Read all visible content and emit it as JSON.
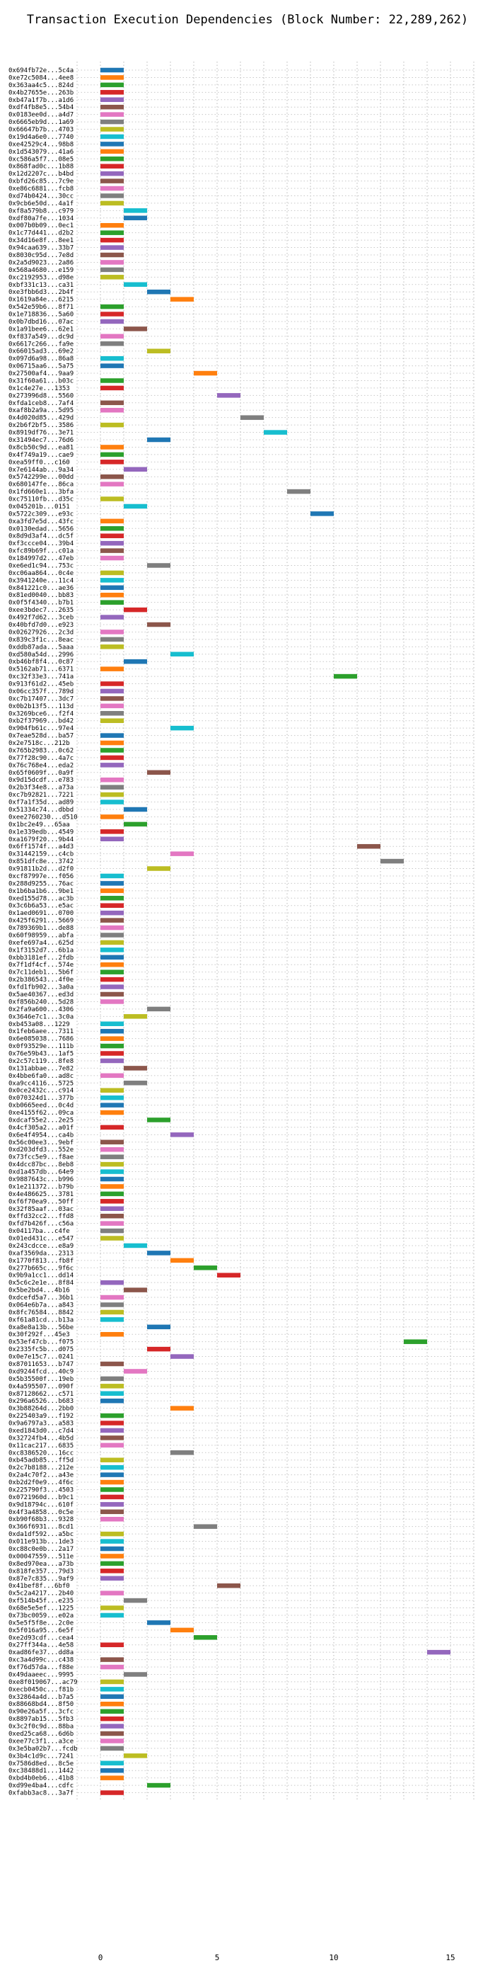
{
  "chart_data": {
    "type": "bar",
    "orientation": "horizontal",
    "title": "Transaction Execution Dependencies (Block Number: 22,289,262)",
    "xlabel": "",
    "ylabel": "",
    "xlim": [
      -1,
      16
    ],
    "xticks": [
      0,
      5,
      10,
      15
    ],
    "grid": true,
    "grid_style": "dotted",
    "colors": [
      "#1f77b4",
      "#ff7f0e",
      "#2ca02c",
      "#d62728",
      "#9467bd",
      "#8c564b",
      "#e377c2",
      "#7f7f7f",
      "#bcbd22",
      "#17becf"
    ],
    "transactions": [
      {
        "tx": "0x694fb72e...5c4a",
        "start": 0
      },
      {
        "tx": "0xe72c5084...4ee8",
        "start": 0
      },
      {
        "tx": "0x363aa4c5...824d",
        "start": 0
      },
      {
        "tx": "0x4b27655e...263b",
        "start": 0
      },
      {
        "tx": "0xb47a1f7b...a1d6",
        "start": 0
      },
      {
        "tx": "0xdf4fb8e5...54b4",
        "start": 0
      },
      {
        "tx": "0x0183ee0d...a4d7",
        "start": 0
      },
      {
        "tx": "0x6665eb9d...1a69",
        "start": 0
      },
      {
        "tx": "0x66647b7b...4703",
        "start": 0
      },
      {
        "tx": "0x19d4a6e0...7740",
        "start": 0
      },
      {
        "tx": "0xe42529c4...98b8",
        "start": 0
      },
      {
        "tx": "0x1d543079...41a6",
        "start": 0
      },
      {
        "tx": "0xc586a5f7...08e5",
        "start": 0
      },
      {
        "tx": "0x868fad0c...1b88",
        "start": 0
      },
      {
        "tx": "0x12d2207c...b4bd",
        "start": 0
      },
      {
        "tx": "0xbfd26c85...7c9e",
        "start": 0
      },
      {
        "tx": "0xe86c6881...fcb8",
        "start": 0
      },
      {
        "tx": "0xd74b0424...30cc",
        "start": 0
      },
      {
        "tx": "0x9cb6e50d...4a1f",
        "start": 0
      },
      {
        "tx": "0xf8a579b8...c979",
        "start": 1
      },
      {
        "tx": "0xdf80a7fe...1034",
        "start": 1
      },
      {
        "tx": "0x007b0b09...0ec1",
        "start": 0
      },
      {
        "tx": "0x1c77d441...d2b2",
        "start": 0
      },
      {
        "tx": "0x34d16e8f...8ee1",
        "start": 0
      },
      {
        "tx": "0x94caa639...33b7",
        "start": 0
      },
      {
        "tx": "0x8030c95d...7e8d",
        "start": 0
      },
      {
        "tx": "0x2a5d9023...2a86",
        "start": 0
      },
      {
        "tx": "0x568a4680...e159",
        "start": 0
      },
      {
        "tx": "0xc2192953...d98e",
        "start": 0
      },
      {
        "tx": "0xbf331c13...ca31",
        "start": 1
      },
      {
        "tx": "0xe3fbb6d3...2b4f",
        "start": 2
      },
      {
        "tx": "0x1619a84e...6215",
        "start": 3
      },
      {
        "tx": "0x542e59b6...8f71",
        "start": 0
      },
      {
        "tx": "0x1e718836...5a60",
        "start": 0
      },
      {
        "tx": "0x0b7dbd16...07ac",
        "start": 0
      },
      {
        "tx": "0x1a91bee6...62e1",
        "start": 1
      },
      {
        "tx": "0xf837a549...dc9d",
        "start": 0
      },
      {
        "tx": "0x6617c266...fa9e",
        "start": 0
      },
      {
        "tx": "0x66015ad3...69e2",
        "start": 2
      },
      {
        "tx": "0x097d6a98...86a8",
        "start": 0
      },
      {
        "tx": "0x06715aa6...5a75",
        "start": 0
      },
      {
        "tx": "0x27500af4...9aa9",
        "start": 4
      },
      {
        "tx": "0x31f60a61...b03c",
        "start": 0
      },
      {
        "tx": "0x1c4e27e...1353",
        "start": 0
      },
      {
        "tx": "0x273996d8...5560",
        "start": 5
      },
      {
        "tx": "0xfda1ceb8...7af4",
        "start": 0
      },
      {
        "tx": "0xaf8b2a9a...5d95",
        "start": 0
      },
      {
        "tx": "0x4d020d85...429d",
        "start": 6
      },
      {
        "tx": "0x2b6f2bf5...3586",
        "start": 0
      },
      {
        "tx": "0x8919df76...3e71",
        "start": 7
      },
      {
        "tx": "0x31494ec7...76d6",
        "start": 2
      },
      {
        "tx": "0x8cb50c9d...ea81",
        "start": 0
      },
      {
        "tx": "0x4f749a19...cae9",
        "start": 0
      },
      {
        "tx": "0xea59ff0...c160",
        "start": 0
      },
      {
        "tx": "0x7e6144ab...9a34",
        "start": 1
      },
      {
        "tx": "0x5742299e...00dd",
        "start": 0
      },
      {
        "tx": "0x680147fe...86ca",
        "start": 0
      },
      {
        "tx": "0x1fd660e1...3bfa",
        "start": 8
      },
      {
        "tx": "0xc75110fb...d35c",
        "start": 0
      },
      {
        "tx": "0x045201b...0151",
        "start": 1
      },
      {
        "tx": "0x5722c309...e93c",
        "start": 9
      },
      {
        "tx": "0xa3fd7e5d...43fc",
        "start": 0
      },
      {
        "tx": "0x0130edad...5656",
        "start": 0
      },
      {
        "tx": "0x8d9d3af4...dc5f",
        "start": 0
      },
      {
        "tx": "0xf3ccce04...39b4",
        "start": 0
      },
      {
        "tx": "0xfc89b69f...c01a",
        "start": 0
      },
      {
        "tx": "0x184997d2...47eb",
        "start": 0
      },
      {
        "tx": "0xe6ed1c94...753c",
        "start": 2
      },
      {
        "tx": "0xc06aa864...0c4e",
        "start": 0
      },
      {
        "tx": "0x3941240e...11c4",
        "start": 0
      },
      {
        "tx": "0x841221c0...ae36",
        "start": 0
      },
      {
        "tx": "0x81ed0040...bb83",
        "start": 0
      },
      {
        "tx": "0x0f5f4340...b7b1",
        "start": 0
      },
      {
        "tx": "0xee3bdec7...2635",
        "start": 1
      },
      {
        "tx": "0x492f7d62...3ceb",
        "start": 0
      },
      {
        "tx": "0x40bfd7d0...e923",
        "start": 2
      },
      {
        "tx": "0x02627926...2c3d",
        "start": 0
      },
      {
        "tx": "0x839c3f1c...8eac",
        "start": 0
      },
      {
        "tx": "0xddb87ada...5aaa",
        "start": 0
      },
      {
        "tx": "0xd580a54d...2996",
        "start": 3
      },
      {
        "tx": "0xb46bf8f4...0c87",
        "start": 1
      },
      {
        "tx": "0x5162ab71...6371",
        "start": 0
      },
      {
        "tx": "0xc32f33e3...741a",
        "start": 10
      },
      {
        "tx": "0x913f61d2...45eb",
        "start": 0
      },
      {
        "tx": "0x06cc357f...789d",
        "start": 0
      },
      {
        "tx": "0xc7b17407...3dc7",
        "start": 0
      },
      {
        "tx": "0x0b2b13f5...113d",
        "start": 0
      },
      {
        "tx": "0x3269bce6...f2f4",
        "start": 0
      },
      {
        "tx": "0xb2f37969...bd42",
        "start": 0
      },
      {
        "tx": "0x904fb61c...97e4",
        "start": 3
      },
      {
        "tx": "0x7eae528d...ba57",
        "start": 0
      },
      {
        "tx": "0x2e7518c...212b",
        "start": 0
      },
      {
        "tx": "0x765b2983...0c62",
        "start": 0
      },
      {
        "tx": "0x77f28c90...4a7c",
        "start": 0
      },
      {
        "tx": "0x76c768e4...eda2",
        "start": 0
      },
      {
        "tx": "0x65f0609f...0a9f",
        "start": 2
      },
      {
        "tx": "0x9d15dcdf...e783",
        "start": 0
      },
      {
        "tx": "0x2b3f34e8...a73a",
        "start": 0
      },
      {
        "tx": "0xc7b92821...7221",
        "start": 0
      },
      {
        "tx": "0xf7a1f35d...ad89",
        "start": 0
      },
      {
        "tx": "0x51334c74...dbbd",
        "start": 1
      },
      {
        "tx": "0xee2760230...d510",
        "start": 0
      },
      {
        "tx": "0x1bc2e49...65aa",
        "start": 1
      },
      {
        "tx": "0x1e339edb...4549",
        "start": 0
      },
      {
        "tx": "0xa1679f20...9b44",
        "start": 0
      },
      {
        "tx": "0x6ff1574f...a4d3",
        "start": 11
      },
      {
        "tx": "0x31442159...c4cb",
        "start": 3
      },
      {
        "tx": "0x851dfc8e...3742",
        "start": 12
      },
      {
        "tx": "0x91811b2d...d2f0",
        "start": 2
      },
      {
        "tx": "0xcf87997e...f056",
        "start": 0
      },
      {
        "tx": "0x288d9255...76ac",
        "start": 0
      },
      {
        "tx": "0x1b6ba1b6...9be1",
        "start": 0
      },
      {
        "tx": "0xed155d78...ac3b",
        "start": 0
      },
      {
        "tx": "0x3c6b6a53...e5ac",
        "start": 0
      },
      {
        "tx": "0x1aed0691...0700",
        "start": 0
      },
      {
        "tx": "0x425f6291...5669",
        "start": 0
      },
      {
        "tx": "0x789369b1...de88",
        "start": 0
      },
      {
        "tx": "0x60f98959...abfa",
        "start": 0
      },
      {
        "tx": "0xefe697a4...625d",
        "start": 0
      },
      {
        "tx": "0x1f3152d7...6b1a",
        "start": 0
      },
      {
        "tx": "0xbb3181ef...2fdb",
        "start": 0
      },
      {
        "tx": "0x7f1df4cf...574e",
        "start": 0
      },
      {
        "tx": "0x7c11deb1...5b6f",
        "start": 0
      },
      {
        "tx": "0x2b386543...4f0e",
        "start": 0
      },
      {
        "tx": "0xfd1fb902...3a0a",
        "start": 0
      },
      {
        "tx": "0x5ae40367...ed3d",
        "start": 0
      },
      {
        "tx": "0xf856b240...5d28",
        "start": 0
      },
      {
        "tx": "0x2fa9a600...4306",
        "start": 2
      },
      {
        "tx": "0x3646e7c1...3c0a",
        "start": 1
      },
      {
        "tx": "0xb453a08...1229",
        "start": 0
      },
      {
        "tx": "0x1feb6aee...7311",
        "start": 0
      },
      {
        "tx": "0x6e085038...7686",
        "start": 0
      },
      {
        "tx": "0x0f93529e...111b",
        "start": 0
      },
      {
        "tx": "0x76e59b43...1af5",
        "start": 0
      },
      {
        "tx": "0x2c57c119...8fe8",
        "start": 0
      },
      {
        "tx": "0x131abbae...7e82",
        "start": 1
      },
      {
        "tx": "0x4bbe6fa0...ad8c",
        "start": 0
      },
      {
        "tx": "0xa9cc4116...5725",
        "start": 1
      },
      {
        "tx": "0x0ce2432c...c914",
        "start": 0
      },
      {
        "tx": "0x070324d1...377b",
        "start": 0
      },
      {
        "tx": "0xb0665eed...0c4d",
        "start": 0
      },
      {
        "tx": "0xe4155f62...09ca",
        "start": 0
      },
      {
        "tx": "0xdcaf55e2...2e25",
        "start": 2
      },
      {
        "tx": "0x4cf305a2...a01f",
        "start": 0
      },
      {
        "tx": "0x6e4f4954...ca4b",
        "start": 3
      },
      {
        "tx": "0x56c00ee3...9ebf",
        "start": 0
      },
      {
        "tx": "0xd203dfd3...552e",
        "start": 0
      },
      {
        "tx": "0x73fcc5e9...f8ae",
        "start": 0
      },
      {
        "tx": "0x4dcc87bc...8eb8",
        "start": 0
      },
      {
        "tx": "0xd1a457db...64e9",
        "start": 0
      },
      {
        "tx": "0x9887643c...b996",
        "start": 0
      },
      {
        "tx": "0x1e211372...b79b",
        "start": 0
      },
      {
        "tx": "0x4e486625...3781",
        "start": 0
      },
      {
        "tx": "0xf6f70ea9...50ff",
        "start": 0
      },
      {
        "tx": "0x32f85aaf...03ac",
        "start": 0
      },
      {
        "tx": "0xffd32cc2...ffd8",
        "start": 0
      },
      {
        "tx": "0xfd7b426f...c56a",
        "start": 0
      },
      {
        "tx": "0x04117ba...c4fe",
        "start": 0
      },
      {
        "tx": "0x01ed431c...e547",
        "start": 0
      },
      {
        "tx": "0x243cdcce...e8a9",
        "start": 1
      },
      {
        "tx": "0xaf3569da...2313",
        "start": 2
      },
      {
        "tx": "0x1770f813...fb8f",
        "start": 3
      },
      {
        "tx": "0x277b665c...9f6c",
        "start": 4
      },
      {
        "tx": "0x9b9a1cc1...dd14",
        "start": 5
      },
      {
        "tx": "0x5c6c2e1e...8f84",
        "start": 0
      },
      {
        "tx": "0x5be2bd4...4b16",
        "start": 1
      },
      {
        "tx": "0xdcefd5a7...36b1",
        "start": 0
      },
      {
        "tx": "0x064e6b7a...a843",
        "start": 0
      },
      {
        "tx": "0x8fc76584...8842",
        "start": 0
      },
      {
        "tx": "0xf61a81cd...b13a",
        "start": 0
      },
      {
        "tx": "0xa8e8a13b...56be",
        "start": 2
      },
      {
        "tx": "0x30f292f...45e3",
        "start": 0
      },
      {
        "tx": "0x53ef47cb...f075",
        "start": 13
      },
      {
        "tx": "0x2335fc5b...d075",
        "start": 2
      },
      {
        "tx": "0x0e7e15c7...0241",
        "start": 3
      },
      {
        "tx": "0x87011653...b747",
        "start": 0
      },
      {
        "tx": "0xd9244fcd...40c9",
        "start": 1
      },
      {
        "tx": "0x5b35500f...19eb",
        "start": 0
      },
      {
        "tx": "0x4a595507...090f",
        "start": 0
      },
      {
        "tx": "0x87128662...c571",
        "start": 0
      },
      {
        "tx": "0x296a6526...b683",
        "start": 0
      },
      {
        "tx": "0x3b88264d...2bb0",
        "start": 3
      },
      {
        "tx": "0x225403a9...f192",
        "start": 0
      },
      {
        "tx": "0x9a6797a3...a583",
        "start": 0
      },
      {
        "tx": "0xed1843d0...c7d4",
        "start": 0
      },
      {
        "tx": "0x32724fb4...4b5d",
        "start": 0
      },
      {
        "tx": "0x11cac217...6835",
        "start": 0
      },
      {
        "tx": "0xc8386520...16cc",
        "start": 3
      },
      {
        "tx": "0xb45adb85...ff5d",
        "start": 0
      },
      {
        "tx": "0x2c7b8188...212e",
        "start": 0
      },
      {
        "tx": "0x2a4c70f2...a43e",
        "start": 0
      },
      {
        "tx": "0xb2d2f0e9...4f6c",
        "start": 0
      },
      {
        "tx": "0x225790f3...4503",
        "start": 0
      },
      {
        "tx": "0x0721960d...b9c1",
        "start": 0
      },
      {
        "tx": "0x9d18794c...610f",
        "start": 0
      },
      {
        "tx": "0x4f3a4858...0c5e",
        "start": 0
      },
      {
        "tx": "0xb90f68b3...9328",
        "start": 0
      },
      {
        "tx": "0x366f6931...8cd1",
        "start": 4
      },
      {
        "tx": "0xda1df592...a5bc",
        "start": 0
      },
      {
        "tx": "0x011e913b...1de3",
        "start": 0
      },
      {
        "tx": "0xc88c0e0b...2a17",
        "start": 0
      },
      {
        "tx": "0x00047559...511e",
        "start": 0
      },
      {
        "tx": "0x8ed970ea...a73b",
        "start": 0
      },
      {
        "tx": "0x818fe357...79d3",
        "start": 0
      },
      {
        "tx": "0x87e7c835...9af9",
        "start": 0
      },
      {
        "tx": "0x41bef8f...6bf0",
        "start": 5
      },
      {
        "tx": "0x5c2a4217...2b40",
        "start": 0
      },
      {
        "tx": "0xf514b45f...e235",
        "start": 1
      },
      {
        "tx": "0x68e5e5ef...1225",
        "start": 0
      },
      {
        "tx": "0x73bc0059...e02a",
        "start": 0
      },
      {
        "tx": "0x5e5f5f8e...2c0e",
        "start": 2
      },
      {
        "tx": "0x5f016a95...6e5f",
        "start": 3
      },
      {
        "tx": "0xe2d93cdf...cea4",
        "start": 4
      },
      {
        "tx": "0x27ff344a...4e58",
        "start": 0
      },
      {
        "tx": "0xad86fe37...dd8a",
        "start": 14
      },
      {
        "tx": "0xc3a4d99c...c438",
        "start": 0
      },
      {
        "tx": "0xf76d57da...f88e",
        "start": 0
      },
      {
        "tx": "0x49daaeec...9995",
        "start": 1
      },
      {
        "tx": "0xe8f019067...ac79",
        "start": 0
      },
      {
        "tx": "0xecb0450c...f81b",
        "start": 0
      },
      {
        "tx": "0x32864a4d...b7a5",
        "start": 0
      },
      {
        "tx": "0x88668bd4...8f50",
        "start": 0
      },
      {
        "tx": "0x90e26a5f...3cfc",
        "start": 0
      },
      {
        "tx": "0x8897ab15...5fb3",
        "start": 0
      },
      {
        "tx": "0x3c2f0c9d...88ba",
        "start": 0
      },
      {
        "tx": "0xed25ca68...6d6b",
        "start": 0
      },
      {
        "tx": "0xee77c3f1...a3ce",
        "start": 0
      },
      {
        "tx": "0x3e5ba02b7...fcdb",
        "start": 0
      },
      {
        "tx": "0x3b4c1d9c...7241",
        "start": 1
      },
      {
        "tx": "0x7586d8ed...8c5e",
        "start": 0
      },
      {
        "tx": "0xc38488d1...1442",
        "start": 0
      },
      {
        "tx": "0xbd4b0eb6...41b8",
        "start": 0
      },
      {
        "tx": "0xd99e4ba4...cdfc",
        "start": 2
      },
      {
        "tx": "0xfabb3ac8...3a7f",
        "start": 0
      }
    ]
  }
}
